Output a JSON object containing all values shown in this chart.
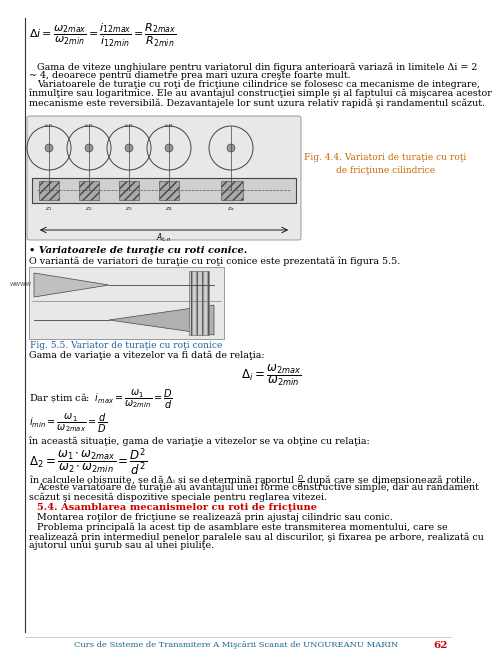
{
  "background_color": "#ffffff",
  "page_number": "62",
  "footer_text": "Curs de Sisteme de Transmitere A Mişcării Scanat de UNGUREANU MARIN",
  "footer_color": "#1a6496",
  "page_number_color": "#cc0000",
  "border_color": "#000000",
  "fig44_caption": "Fig. 4.4. Variatori de turaţie cu roţi\nde fricţiune cilindrice",
  "fig55_caption": "Fig. 5.5. Variator de turaţie cu roţi conice",
  "fig55_caption_color": "#1a5fa0",
  "fig44_caption_color": "#cc6600",
  "bullet_heading": "• Variatoarele de turaţie cu roti conice.",
  "section_heading": "5.4. Asamblarea mecanismelor cu roti de fricţiune",
  "section_color": "#cc0000",
  "body_color": "#1a1a1a",
  "line1": "Gama de viteze unghiulare pentru variatorul din figura anterioară variază in limitele Δi = 2",
  "line2": "~ 4, deoarece pentru diametre prea mari uzura creşte foarte mult.",
  "line3": "Variatoarele de turaţie cu roţi de fricţiune cilindrice se folosesc ca mecanisme de integrare,",
  "line4": "înmulţire sau logaritmice. Ele au avantajul construcţiei simple şi al faptului că mişcarea acestor",
  "line5": "mecanisme este reversibilă. Dezavantajele lor sunt uzura relativ rapidă şi randamentul scăzut.",
  "line_fig55_intro": "O variantă de variatori de turaţie cu roţi conice este prezentată în figura 5.5.",
  "line_gama": "Gama de variaţie a vitezelor va fi dată de relaţia:",
  "line_dar": "Dar ştim că:",
  "line_in_aceasta": "în această situaţie, gama de variaţie a vitezelor se va obţine cu relaţia:",
  "line_calcule": "în calculele obişnuite, se dă Δᵢ şi se determină raportul ω/d după care se dimensionează rotile.",
  "line_aceste1": "Aceste variatoare de turaţie au avantajul unei forme constructive simple, dar au randament",
  "line_aceste2": "scăzut şi necesită dispozitive speciale pentru reglarea vitezei.",
  "line_montarea": "Montarea roţilor de fricţiune se realizează prin ajustaj cilindric sau conic.",
  "line_prob1": "Problema principală la acest tip de asamblare este transmiterea momentului, care se",
  "line_prob2": "realizează prin intermediul penelor paralele sau al discurilor, şi fixarea pe arbore, realizată cu",
  "line_prob3": "ajutorul unui şurub sau al unei piuliţe."
}
